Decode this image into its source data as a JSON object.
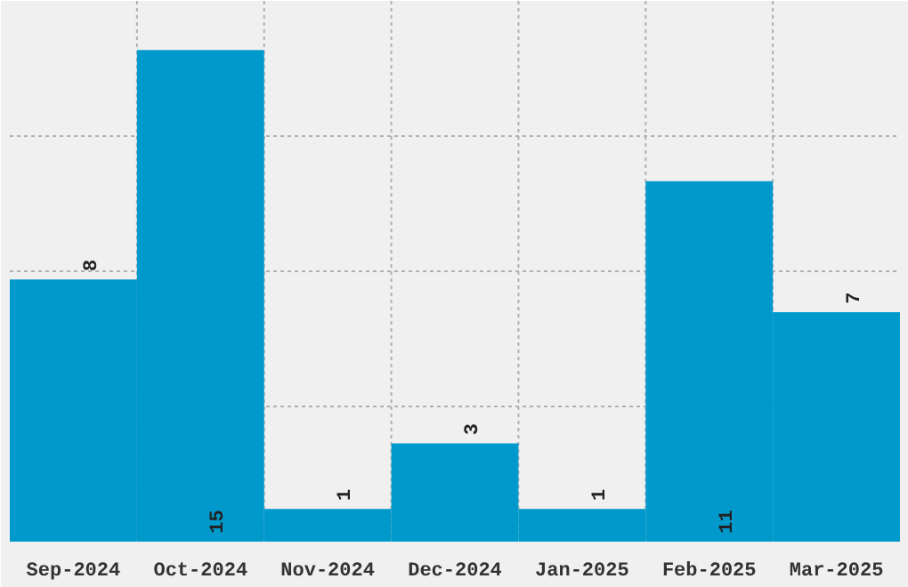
{
  "chart_data": {
    "type": "bar",
    "categories": [
      "Sep-2024",
      "Oct-2024",
      "Nov-2024",
      "Dec-2024",
      "Jan-2025",
      "Feb-2025",
      "Mar-2025"
    ],
    "values": [
      8,
      15,
      1,
      3,
      1,
      11,
      7
    ],
    "color": "#0099cc",
    "ylim": [
      0,
      16.5
    ],
    "yticks": [
      {
        "value": 0,
        "label": null
      },
      {
        "value": 4.125,
        "label": null
      },
      {
        "value": 8.25,
        "label": null
      },
      {
        "value": 12.375,
        "label": null
      },
      {
        "value": 16.5,
        "label": null
      }
    ],
    "data_labels": true,
    "grid": true,
    "tick_labels": "x"
  }
}
